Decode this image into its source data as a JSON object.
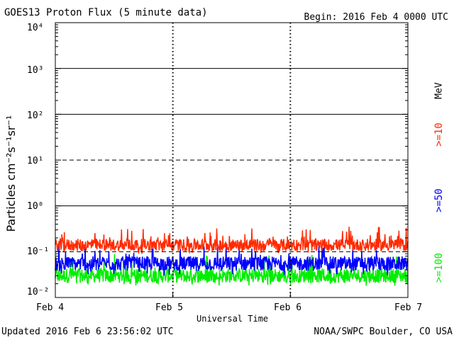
{
  "header": {
    "title": "GOES13 Proton Flux (5 minute data)",
    "begin": "Begin: 2016 Feb 4 0000 UTC"
  },
  "footer": {
    "updated": "Updated 2016 Feb  6 23:56:02 UTC",
    "credit": "NOAA/SWPC Boulder, CO USA"
  },
  "chart_data": {
    "type": "line",
    "title": "GOES13 Proton Flux (5 minute data)",
    "xlabel": "Universal Time",
    "ylabel": "Particles cm⁻²s⁻¹sr⁻¹",
    "y_scale": "log",
    "ylim": [
      0.01,
      10000
    ],
    "x_ticks": [
      "Feb 4",
      "Feb 5",
      "Feb 6",
      "Feb 7"
    ],
    "y_ticks": [
      "10⁻²",
      "10⁻¹",
      "10⁰",
      "10¹",
      "10²",
      "10³",
      "10⁴"
    ],
    "unit_label": "MeV",
    "reference_lines": [
      {
        "y": 1000,
        "style": "solid"
      },
      {
        "y": 100,
        "style": "solid"
      },
      {
        "y": 10,
        "style": "dashed"
      },
      {
        "y": 1,
        "style": "solid"
      },
      {
        "y": 0.1,
        "style": "dashed"
      }
    ],
    "grid": "day-boundary dashed verticals",
    "series": [
      {
        "name": ">=10",
        "color": "#ff2a00",
        "baseline": 0.14,
        "min": 0.09,
        "max": 0.35
      },
      {
        "name": ">=50",
        "color": "#0000ff",
        "baseline": 0.055,
        "min": 0.03,
        "max": 0.15
      },
      {
        "name": ">=100",
        "color": "#00ee00",
        "baseline": 0.03,
        "min": 0.018,
        "max": 0.09
      }
    ]
  }
}
